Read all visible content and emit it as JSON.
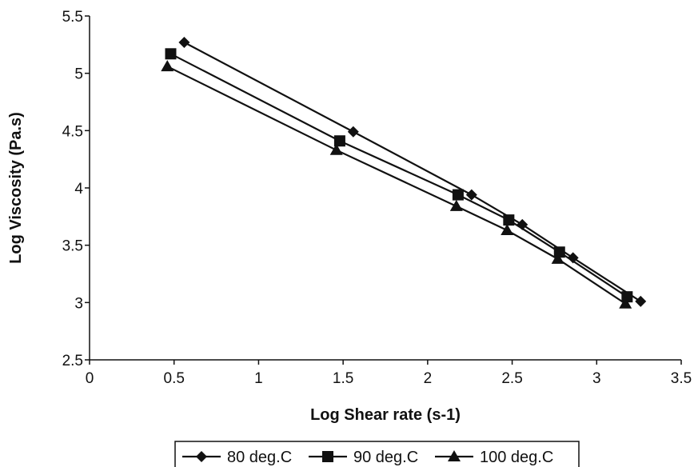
{
  "chart_data": {
    "type": "line",
    "title": "",
    "xlabel": "Log Shear rate (s-1)",
    "ylabel": "Log Viscosity (Pa.s)",
    "xlim": [
      0,
      3.5
    ],
    "ylim": [
      2.5,
      5.5
    ],
    "xticks": [
      "0",
      "0.5",
      "1",
      "1.5",
      "2",
      "2.5",
      "3",
      "3.5"
    ],
    "yticks": [
      "2.5",
      "3",
      "3.5",
      "4",
      "4.5",
      "5",
      "5.5"
    ],
    "grid": false,
    "legend_position": "bottom",
    "series": [
      {
        "name": "80 deg.C",
        "marker": "diamond",
        "color": "#111111",
        "x": [
          0.56,
          1.56,
          2.26,
          2.56,
          2.86,
          3.26
        ],
        "y": [
          5.27,
          4.49,
          3.94,
          3.68,
          3.39,
          3.01
        ]
      },
      {
        "name": "90 deg.C",
        "marker": "square",
        "color": "#111111",
        "x": [
          0.48,
          1.48,
          2.18,
          2.48,
          2.78,
          3.18
        ],
        "y": [
          5.17,
          4.41,
          3.94,
          3.72,
          3.44,
          3.05
        ]
      },
      {
        "name": "100 deg.C",
        "marker": "triangle",
        "color": "#111111",
        "x": [
          0.46,
          1.46,
          2.17,
          2.47,
          2.77,
          3.17
        ],
        "y": [
          5.06,
          4.33,
          3.84,
          3.63,
          3.38,
          2.99
        ]
      }
    ]
  }
}
